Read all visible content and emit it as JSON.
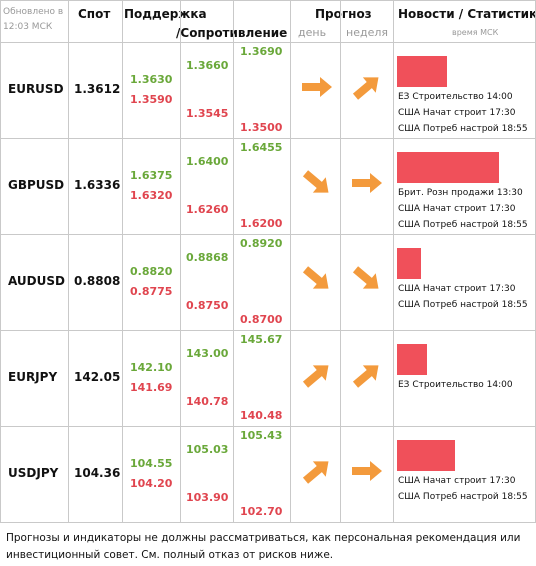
{
  "header": {
    "updated": "Обновлено в 12:03 МСК",
    "spot": "Спот",
    "support": "Поддержка",
    "resistance": "/Сопротивление",
    "forecast": "Прогноз",
    "day": "день",
    "week": "неделя",
    "news": "Новости / Статистика",
    "news_time": "время МСК"
  },
  "rows": [
    {
      "pair": "EURUSD",
      "spot": "1.3612",
      "s1": [
        "1.3630",
        "1.3590"
      ],
      "s2": [
        "1.3660",
        "1.3545"
      ],
      "s3": [
        "1.3690",
        "1.3500"
      ],
      "forecast": {
        "day": "right",
        "week": "up"
      },
      "news_bar": 50,
      "news": [
        "ЕЗ Строительство 14:00",
        "США Начат строит 17:30",
        "США Потреб настрой 18:55"
      ]
    },
    {
      "pair": "GBPUSD",
      "spot": "1.6336",
      "s1": [
        "1.6375",
        "1.6320"
      ],
      "s2": [
        "1.6400",
        "1.6260"
      ],
      "s3": [
        "1.6455",
        "1.6200"
      ],
      "forecast": {
        "day": "down",
        "week": "right"
      },
      "news_bar": 102,
      "news": [
        "Брит. Розн продажи 13:30",
        "США Начат строит 17:30",
        "США Потреб настрой 18:55"
      ]
    },
    {
      "pair": "AUDUSD",
      "spot": "0.8808",
      "s1": [
        "0.8820",
        "0.8775"
      ],
      "s2": [
        "0.8868",
        "0.8750"
      ],
      "s3": [
        "0.8920",
        "0.8700"
      ],
      "forecast": {
        "day": "down",
        "week": "down"
      },
      "news_bar": 24,
      "news": [
        "США Начат строит 17:30",
        "США Потреб настрой 18:55"
      ]
    },
    {
      "pair": "EURJPY",
      "spot": "142.05",
      "s1": [
        "142.10",
        "141.69"
      ],
      "s2": [
        "143.00",
        "140.78"
      ],
      "s3": [
        "145.67",
        "140.48"
      ],
      "forecast": {
        "day": "up",
        "week": "up"
      },
      "news_bar": 30,
      "news": [
        "ЕЗ Строительство 14:00"
      ]
    },
    {
      "pair": "USDJPY",
      "spot": "104.36",
      "s1": [
        "104.55",
        "104.20"
      ],
      "s2": [
        "105.03",
        "103.90"
      ],
      "s3": [
        "105.43",
        "102.70"
      ],
      "forecast": {
        "day": "up",
        "week": "right"
      },
      "news_bar": 58,
      "news": [
        "США Начат строит 17:30",
        "США Потреб настрой 18:55"
      ]
    }
  ],
  "footer": "Прогнозы и индикаторы не должны рассматриваться, как персональная рекомендация или инвестиционный совет. См. полный отказ от рисков ниже."
}
